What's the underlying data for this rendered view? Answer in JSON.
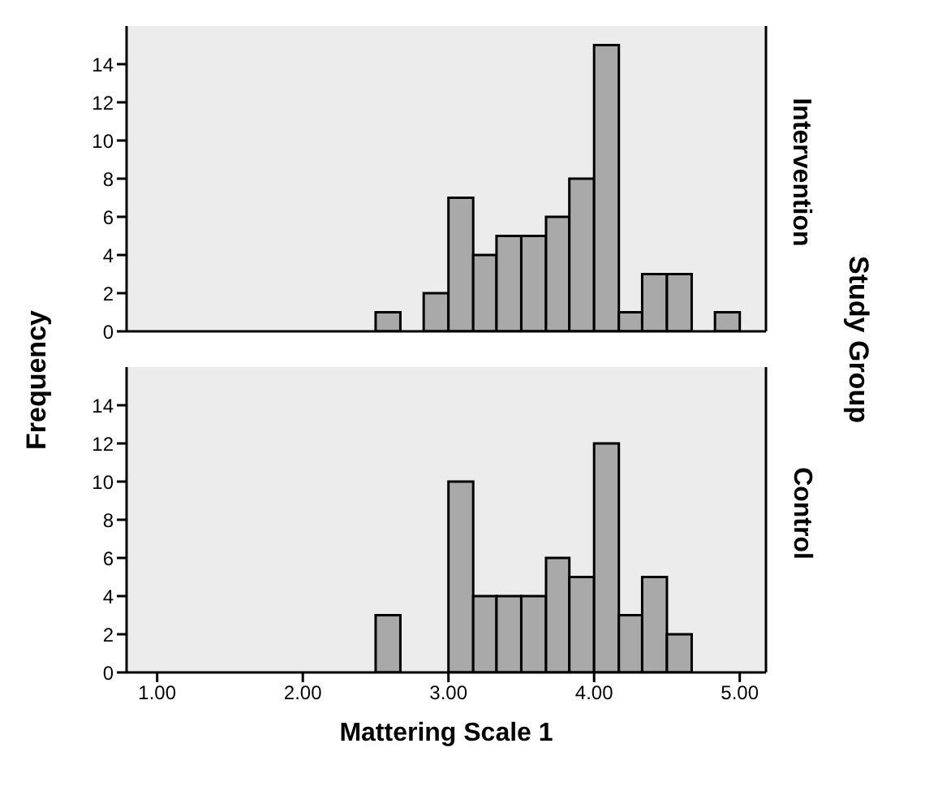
{
  "chart_data": [
    {
      "type": "histogram",
      "ylabel": "Frequency",
      "y2label": "Intervention",
      "annotations": [
        "Study Group"
      ],
      "color": "#a9a9a9",
      "bins": [
        2.5,
        2.67,
        2.83,
        3.0,
        3.17,
        3.33,
        3.5,
        3.67,
        3.83,
        4.0,
        4.17,
        4.33,
        4.5,
        4.67,
        4.83,
        5.0
      ],
      "values": [
        1,
        0,
        2,
        7,
        4,
        5,
        5,
        6,
        8,
        15,
        1,
        3,
        3,
        0,
        1
      ],
      "xlim": [
        0.79,
        5.18
      ],
      "ylim": [
        0,
        16
      ],
      "yticks": [
        0,
        2,
        4,
        6,
        8,
        10,
        12,
        14
      ],
      "tick_labels": "y"
    },
    {
      "type": "histogram",
      "xlabel": "Mattering Scale 1",
      "y2label": "Control",
      "color": "#a9a9a9",
      "bins": [
        2.5,
        2.67,
        3.0,
        3.17,
        3.33,
        3.5,
        3.67,
        3.83,
        4.0,
        4.17,
        4.33,
        4.5,
        4.67
      ],
      "values": [
        3,
        0,
        10,
        4,
        4,
        4,
        6,
        5,
        12,
        3,
        5,
        2
      ],
      "xlim": [
        0.79,
        5.18
      ],
      "xticks": [
        {
          "value": 1,
          "label": "1.00"
        },
        {
          "value": 2,
          "label": "2.00"
        },
        {
          "value": 3,
          "label": "3.00"
        },
        {
          "value": 4,
          "label": "4.00"
        },
        {
          "value": 5,
          "label": "5.00"
        }
      ],
      "ylim": [
        0,
        16
      ],
      "yticks": [
        0,
        2,
        4,
        6,
        8,
        10,
        12,
        14
      ]
    }
  ]
}
